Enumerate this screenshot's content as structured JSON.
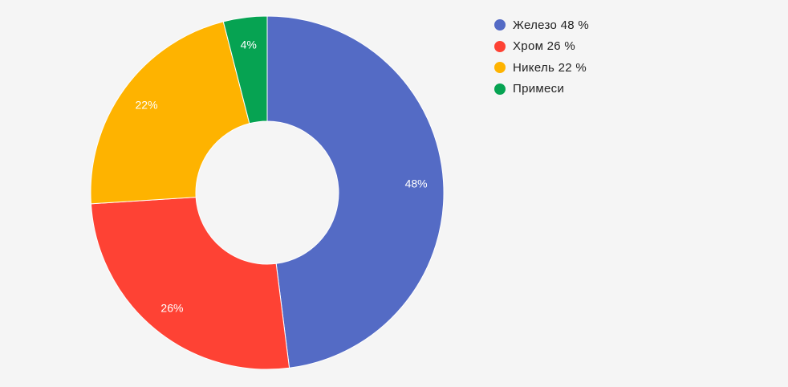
{
  "chart_data": {
    "type": "pie",
    "variant": "donut",
    "categories": [
      "Железо",
      "Хром",
      "Никель",
      "Примеси"
    ],
    "values": [
      48,
      26,
      22,
      4
    ],
    "data_labels": [
      "48%",
      "26%",
      "22%",
      "4%"
    ],
    "legend_entries": [
      "Железо 48 %",
      "Хром 26 %",
      "Никель 22 %",
      "Примеси"
    ],
    "colors": [
      "#546bc5",
      "#fe4234",
      "#feb300",
      "#06a352"
    ],
    "legend_position": "right",
    "title": ""
  }
}
